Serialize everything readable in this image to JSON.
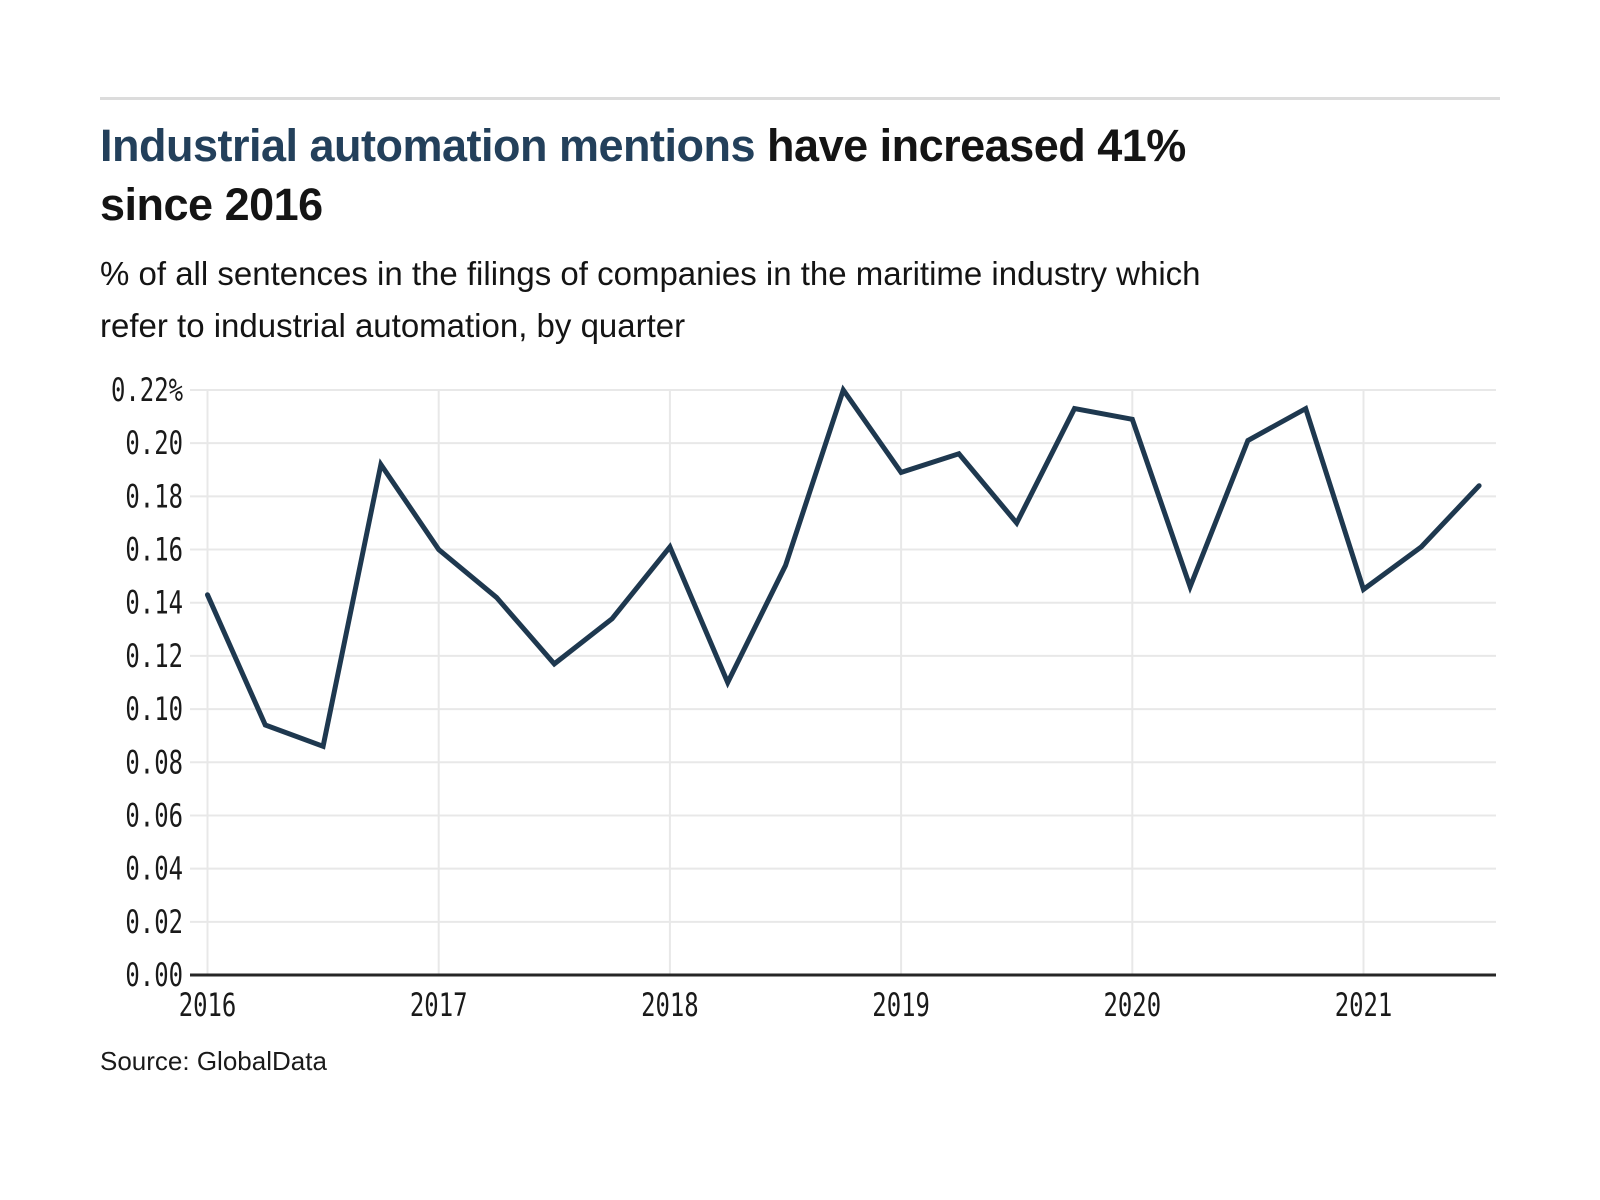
{
  "page": {
    "background": "#ffffff",
    "divider_color": "#dcdcdc"
  },
  "header": {
    "title_highlight": "Industrial automation mentions",
    "title_rest": " have increased 41%",
    "title_line2": "since 2016",
    "title_highlight_color": "#23405b",
    "title_text_color": "#141414",
    "subtitle_line1": "% of all sentences in the filings of companies in the maritime industry which",
    "subtitle_line2": "refer to industrial automation, by quarter"
  },
  "footer": {
    "source": "Source: GlobalData"
  },
  "chart_data": {
    "type": "line",
    "title": "Industrial automation mentions have increased 41% since 2016",
    "subtitle": "% of all sentences in the filings of companies in the maritime industry which refer to industrial automation, by quarter",
    "unit": "%",
    "x": [
      "2016 Q1",
      "2016 Q2",
      "2016 Q3",
      "2016 Q4",
      "2017 Q1",
      "2017 Q2",
      "2017 Q3",
      "2017 Q4",
      "2018 Q1",
      "2018 Q2",
      "2018 Q3",
      "2018 Q4",
      "2019 Q1",
      "2019 Q2",
      "2019 Q3",
      "2019 Q4",
      "2020 Q1",
      "2020 Q2",
      "2020 Q3",
      "2020 Q4",
      "2021 Q1",
      "2021 Q2",
      "2021 Q3"
    ],
    "values": [
      0.143,
      0.094,
      0.086,
      0.192,
      0.16,
      0.142,
      0.117,
      0.134,
      0.161,
      0.11,
      0.154,
      0.22,
      0.189,
      0.196,
      0.17,
      0.213,
      0.209,
      0.146,
      0.201,
      0.213,
      0.145,
      0.161,
      0.184
    ],
    "ylim": [
      0,
      0.22
    ],
    "ytick_step": 0.02,
    "ytick_labels": [
      "0.22%",
      "0.20",
      "0.18",
      "0.16",
      "0.14",
      "0.12",
      "0.10",
      "0.08",
      "0.06",
      "0.04",
      "0.02",
      "0.00"
    ],
    "xtick_labels": [
      "2016",
      "2017",
      "2018",
      "2019",
      "2020",
      "2021"
    ],
    "grid": true,
    "legend_position": "none",
    "line_color": "#1e384f",
    "grid_color": "#e8e8e8",
    "axis_color": "#262626",
    "tick_label_color": "#1a1a1a"
  }
}
